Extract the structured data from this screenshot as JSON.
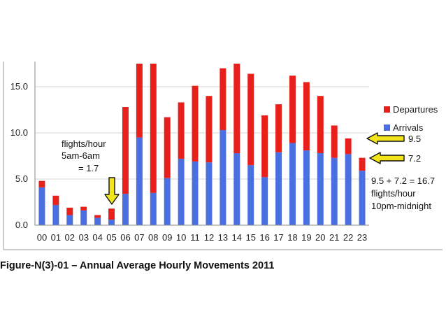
{
  "caption": "Figure-N(3)-01 – Annual Average Hourly Movements 2011",
  "chart_data": {
    "type": "bar",
    "stacked": true,
    "categories": [
      "00",
      "01",
      "02",
      "03",
      "04",
      "05",
      "06",
      "07",
      "08",
      "09",
      "10",
      "11",
      "12",
      "13",
      "14",
      "15",
      "16",
      "17",
      "18",
      "19",
      "20",
      "21",
      "22",
      "23"
    ],
    "series": [
      {
        "name": "Arrivals",
        "color": "#4a6fe0",
        "values": [
          4.1,
          2.2,
          1.1,
          1.6,
          0.8,
          0.6,
          3.4,
          9.5,
          3.5,
          5.1,
          7.2,
          6.9,
          6.8,
          10.3,
          7.8,
          6.5,
          5.2,
          7.9,
          8.9,
          8.1,
          7.8,
          7.3,
          7.7,
          5.9
        ]
      },
      {
        "name": "Departures",
        "color": "#e8201b",
        "values": [
          0.7,
          1.0,
          0.8,
          0.4,
          0.3,
          1.2,
          9.4,
          8.5,
          14.5,
          6.6,
          6.1,
          8.2,
          7.2,
          6.7,
          9.9,
          9.9,
          6.7,
          5.2,
          7.3,
          7.4,
          6.2,
          3.5,
          1.7,
          1.4
        ]
      }
    ],
    "ylim": [
      0,
      17.5
    ],
    "yticks": [
      "0.0",
      "5.0",
      "10.0",
      "15.0"
    ],
    "legend_position": "right",
    "grid": true
  },
  "annotations": {
    "left_lines": [
      "flights/hour",
      "5am-6am",
      "= 1.7"
    ],
    "arrow_value_top": "9.5",
    "arrow_value_bottom": "7.2",
    "right_lines": [
      "9.5 + 7.2 = 16.7",
      "flights/hour",
      "10pm-midnight"
    ],
    "arrow_color": "#f2e51a"
  }
}
